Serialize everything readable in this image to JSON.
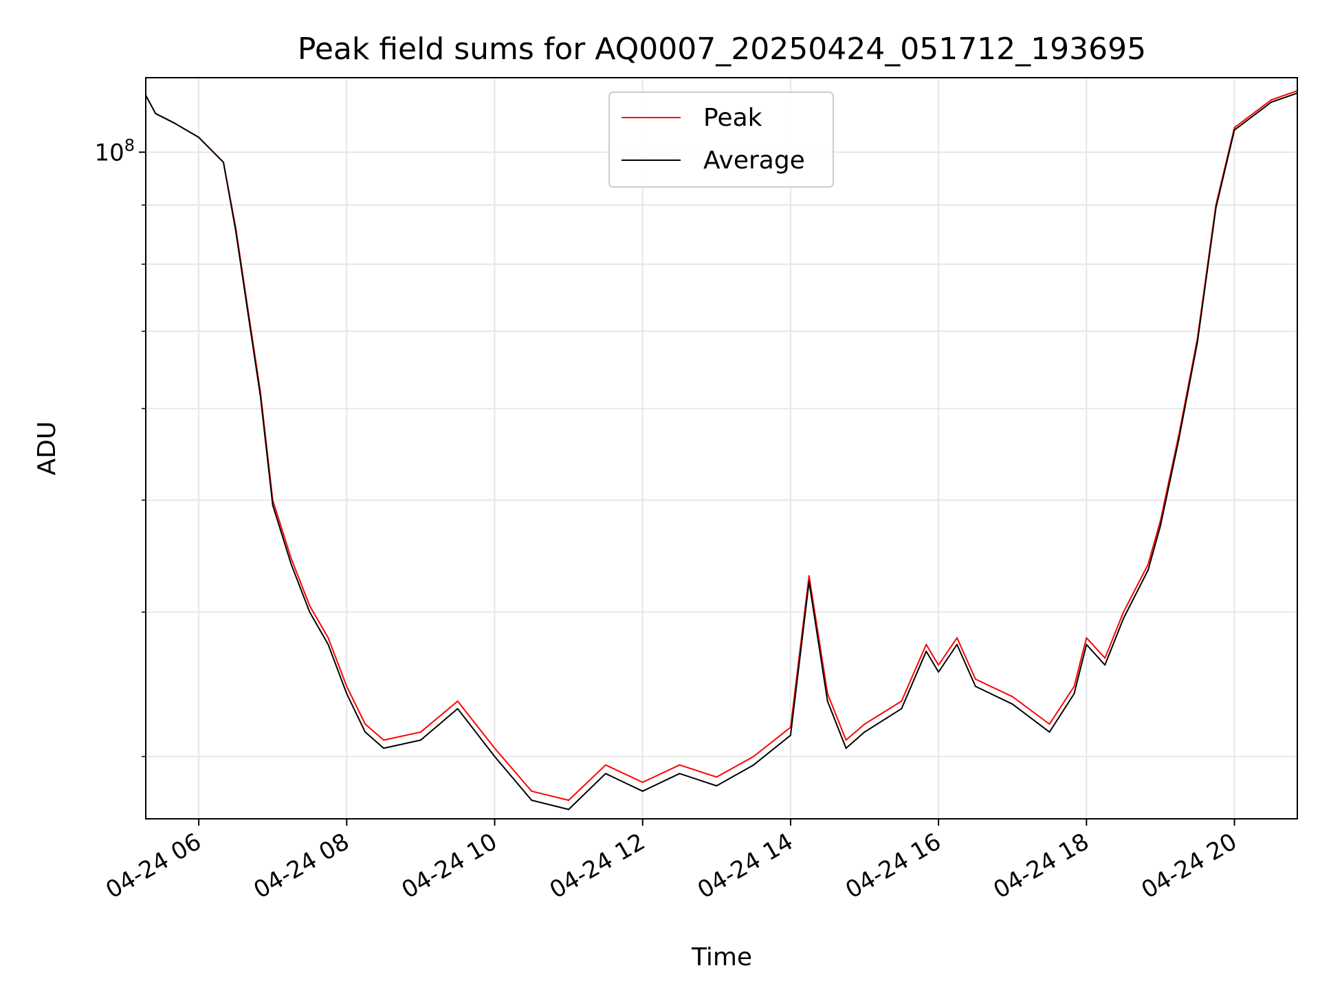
{
  "chart_data": {
    "type": "line",
    "title": "Peak field sums for AQ0007_20250424_051712_193695",
    "xlabel": "Time",
    "ylabel": "ADU",
    "y_scale": "log",
    "ylim": [
      26500000,
      116000000
    ],
    "xlim": [
      "04-24 05:17",
      "04-24 20:51"
    ],
    "x_tick_labels": [
      "04-24 06",
      "04-24 08",
      "04-24 10",
      "04-24 12",
      "04-24 14",
      "04-24 16",
      "04-24 18",
      "04-24 20"
    ],
    "y_tick_labels": [
      {
        "base": "10",
        "exp": "8"
      }
    ],
    "grid": true,
    "legend_position": "top-center",
    "colors": {
      "Peak": "#ff0000",
      "Average": "#000000"
    },
    "x": [
      "04-24 05:17",
      "04-24 05:25",
      "04-24 05:40",
      "04-24 06:00",
      "04-24 06:20",
      "04-24 06:30",
      "04-24 06:40",
      "04-24 06:50",
      "04-24 07:00",
      "04-24 07:15",
      "04-24 07:30",
      "04-24 07:45",
      "04-24 08:00",
      "04-24 08:15",
      "04-24 08:30",
      "04-24 09:00",
      "04-24 09:30",
      "04-24 10:00",
      "04-24 10:30",
      "04-24 11:00",
      "04-24 11:30",
      "04-24 12:00",
      "04-24 12:30",
      "04-24 13:00",
      "04-24 13:30",
      "04-24 14:00",
      "04-24 14:15",
      "04-24 14:30",
      "04-24 14:45",
      "04-24 15:00",
      "04-24 15:30",
      "04-24 15:50",
      "04-24 16:00",
      "04-24 16:15",
      "04-24 16:30",
      "04-24 17:00",
      "04-24 17:30",
      "04-24 17:50",
      "04-24 18:00",
      "04-24 18:15",
      "04-24 18:30",
      "04-24 18:50",
      "04-24 19:00",
      "04-24 19:15",
      "04-24 19:30",
      "04-24 19:45",
      "04-24 20:00",
      "04-24 20:30",
      "04-24 20:51"
    ],
    "series": [
      {
        "name": "Peak",
        "values": [
          112000000,
          108000000,
          106000000,
          103000000,
          98000000,
          86000000,
          73000000,
          62000000,
          50000000,
          44500000,
          40500000,
          38000000,
          34500000,
          32000000,
          31000000,
          31500000,
          33500000,
          30500000,
          28000000,
          27500000,
          29500000,
          28500000,
          29500000,
          28800000,
          30000000,
          31800000,
          43000000,
          34000000,
          31000000,
          32000000,
          33500000,
          37500000,
          36000000,
          38000000,
          35000000,
          33800000,
          32000000,
          34500000,
          38000000,
          36500000,
          40000000,
          44000000,
          48000000,
          57000000,
          69000000,
          90000000,
          105000000,
          111000000,
          113000000
        ]
      },
      {
        "name": "Average",
        "values": [
          112000000,
          108000000,
          106000000,
          103000000,
          98000000,
          85500000,
          72500000,
          61500000,
          49500000,
          44000000,
          40000000,
          37500000,
          34000000,
          31500000,
          30500000,
          31000000,
          33000000,
          30000000,
          27500000,
          27000000,
          29000000,
          28000000,
          29000000,
          28300000,
          29500000,
          31300000,
          42500000,
          33500000,
          30500000,
          31500000,
          33000000,
          37000000,
          35500000,
          37500000,
          34500000,
          33300000,
          31500000,
          34000000,
          37500000,
          36000000,
          39500000,
          43500000,
          47500000,
          56500000,
          68500000,
          89500000,
          104500000,
          110500000,
          112500000
        ]
      }
    ]
  }
}
